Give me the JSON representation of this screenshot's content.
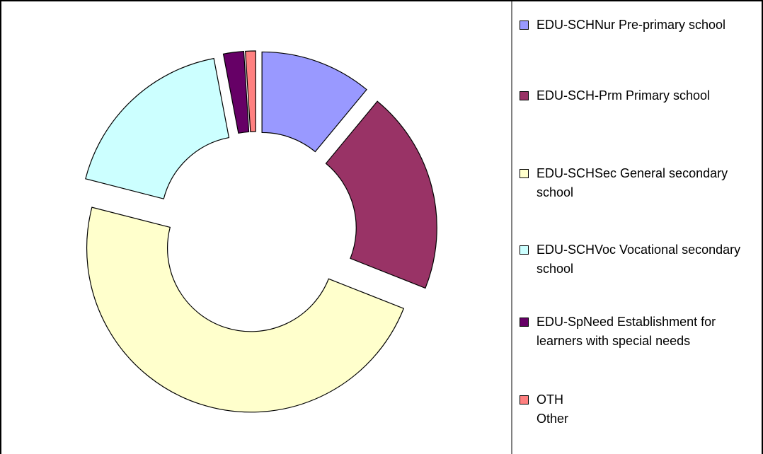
{
  "chart_data": {
    "type": "donut",
    "categories": [
      "EDU-SCHNur Pre-primary school",
      "EDU-SCH-Prm Primary school",
      "EDU-SCHSec General secondary school",
      "EDU-SCHVoc Vocational secondary school",
      "EDU-SpNeed Establishment for learners with special needs",
      "OTH\nOther"
    ],
    "values": [
      11,
      20,
      48,
      18,
      2,
      1
    ],
    "colors": [
      "#9999ff",
      "#993366",
      "#ffffcc",
      "#ccffff",
      "#660066",
      "#ff8080"
    ],
    "legend": "right"
  }
}
